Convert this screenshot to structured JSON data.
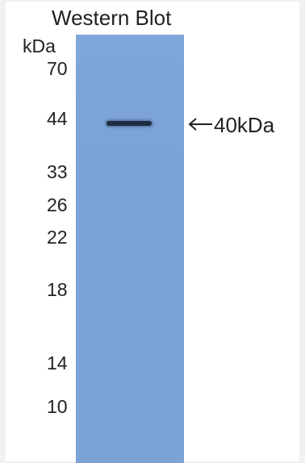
{
  "title": "Western Blot",
  "unit_label": "kDa",
  "markers": [
    "70",
    "44",
    "33",
    "26",
    "22",
    "18",
    "14",
    "10"
  ],
  "band_label": "40kDa",
  "colors": {
    "lane": "#7ba3d6",
    "band": "#1f2c44",
    "background": "#ffffff"
  },
  "icons": {
    "band_pointer": "left-arrow-icon"
  }
}
